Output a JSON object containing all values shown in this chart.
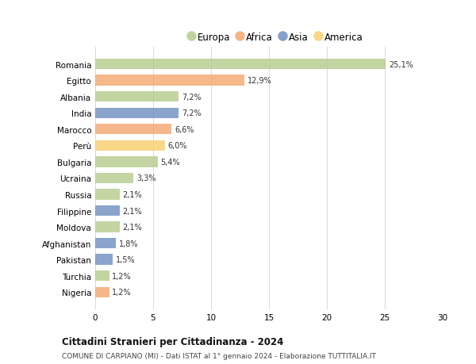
{
  "categories": [
    "Romania",
    "Egitto",
    "Albania",
    "India",
    "Marocco",
    "Perù",
    "Bulgaria",
    "Ucraina",
    "Russia",
    "Filippine",
    "Moldova",
    "Afghanistan",
    "Pakistan",
    "Turchia",
    "Nigeria"
  ],
  "values": [
    25.1,
    12.9,
    7.2,
    7.2,
    6.6,
    6.0,
    5.4,
    3.3,
    2.1,
    2.1,
    2.1,
    1.8,
    1.5,
    1.2,
    1.2
  ],
  "labels": [
    "25,1%",
    "12,9%",
    "7,2%",
    "7,2%",
    "6,6%",
    "6,0%",
    "5,4%",
    "3,3%",
    "2,1%",
    "2,1%",
    "2,1%",
    "1,8%",
    "1,5%",
    "1,2%",
    "1,2%"
  ],
  "continents": [
    "Europa",
    "Africa",
    "Europa",
    "Asia",
    "Africa",
    "America",
    "Europa",
    "Europa",
    "Europa",
    "Asia",
    "Europa",
    "Asia",
    "Asia",
    "Europa",
    "Africa"
  ],
  "continent_colors": {
    "Europa": "#b5cc8e",
    "Africa": "#f4a870",
    "Asia": "#7090c0",
    "America": "#f8d070"
  },
  "legend_order": [
    "Europa",
    "Africa",
    "Asia",
    "America"
  ],
  "title": "Cittadini Stranieri per Cittadinanza - 2024",
  "subtitle": "COMUNE DI CARPIANO (MI) - Dati ISTAT al 1° gennaio 2024 - Elaborazione TUTTITALIA.IT",
  "xlim": [
    0,
    30
  ],
  "xticks": [
    0,
    5,
    10,
    15,
    20,
    25,
    30
  ],
  "background_color": "#ffffff",
  "grid_color": "#d8d8d8",
  "bar_height": 0.65
}
